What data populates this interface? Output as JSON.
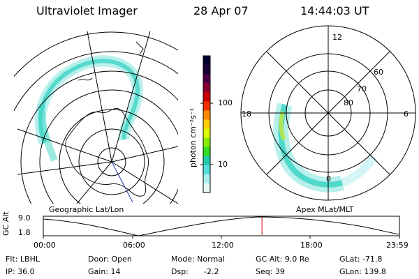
{
  "header": {
    "instrument": "Ultraviolet Imager",
    "date": "28 Apr 07",
    "time": "14:44:03 UT"
  },
  "geo_panel": {
    "label": "Geographic Lat/Lon"
  },
  "apex_panel": {
    "label": "Apex MLat/MLT",
    "mlt_labels": [
      "12",
      "18",
      "6",
      "0"
    ],
    "mlat_labels": [
      "60",
      "70",
      "80"
    ]
  },
  "colorbar": {
    "label": "photon cm⁻²s⁻¹",
    "ticks": [
      "100",
      "10"
    ],
    "colors": [
      "#000033",
      "#1a0033",
      "#4a0044",
      "#8a0033",
      "#cc0000",
      "#ee3300",
      "#ff8800",
      "#ffcc00",
      "#ddff00",
      "#88ee00",
      "#33dd22",
      "#22ccaa",
      "#55dddd",
      "#aaeeee",
      "#e8f6f6"
    ]
  },
  "timeline": {
    "y_label": "GC Alt",
    "y_ticks": [
      "9.0",
      "1.8"
    ],
    "x_ticks": [
      "00:00",
      "06:00",
      "12:00",
      "18:00",
      "23:59"
    ],
    "current_time_fraction": 0.614
  },
  "footer": {
    "flt": "Flt: LBHL",
    "ip": "IP: 36.0",
    "door": "Door: Open",
    "gain": "Gain: 14",
    "mode": "Mode: Normal",
    "dsp": "Dsp:",
    "dsp_val": "-2.2",
    "gcalt": "GC Alt: 9.0 Re",
    "seq": "Seq: 39",
    "glat": "GLat: -71.8",
    "glon": "GLon: 139.8"
  }
}
